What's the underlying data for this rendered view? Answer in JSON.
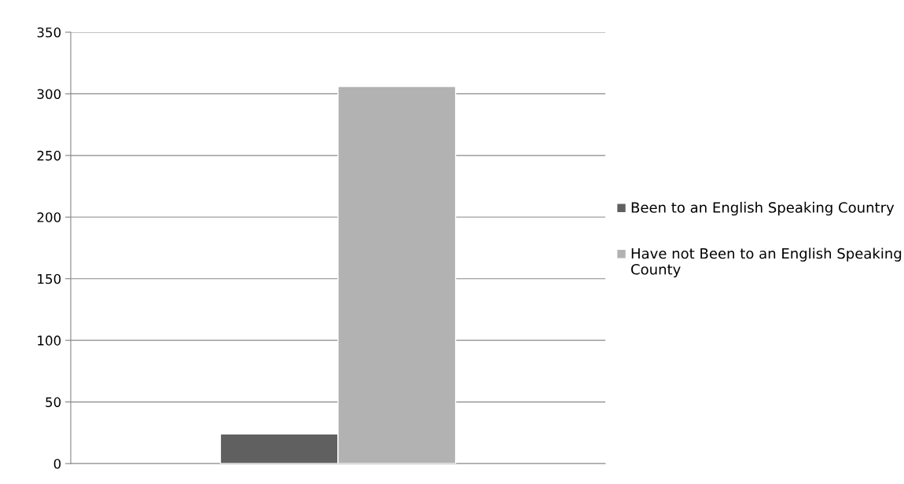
{
  "chart_data": {
    "type": "bar",
    "categories": [
      null
    ],
    "series": [
      {
        "name": "Been to an English Speaking Country",
        "color": "#606060",
        "values": [
          24
        ]
      },
      {
        "name": "Have not Been to an English Speaking County",
        "color": "#b2b2b2",
        "values": [
          306
        ]
      }
    ],
    "ylim": [
      0,
      350
    ],
    "yticks": [
      0,
      50,
      100,
      150,
      200,
      250,
      300,
      350
    ],
    "grid": "y",
    "legend": "right"
  }
}
